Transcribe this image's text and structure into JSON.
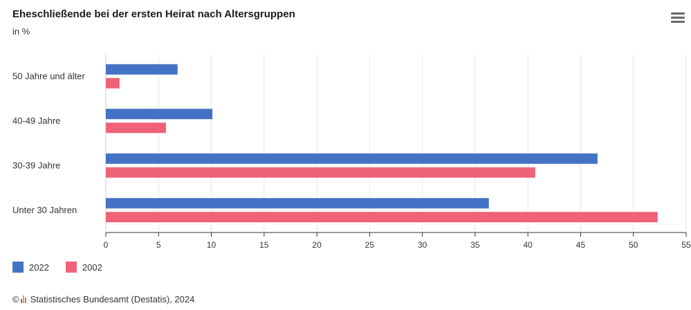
{
  "chart_data": {
    "type": "bar",
    "orientation": "horizontal",
    "title": "Eheschließende bei der ersten Heirat nach Altersgruppen",
    "subtitle": "in %",
    "categories": [
      "50 Jahre und älter",
      "40-49 Jahre",
      "30-39 Jahre",
      "Unter 30 Jahren"
    ],
    "series": [
      {
        "name": "2022",
        "color": "#4472c4",
        "values": [
          6.8,
          10.1,
          46.6,
          36.3
        ]
      },
      {
        "name": "2002",
        "color": "#f06277",
        "values": [
          1.3,
          5.7,
          40.7,
          52.3
        ]
      }
    ],
    "xlim": [
      0,
      55
    ],
    "xticks": [
      0,
      5,
      10,
      15,
      20,
      25,
      30,
      35,
      40,
      45,
      50,
      55
    ],
    "grid": true,
    "legend_position": "bottom-left"
  },
  "source": {
    "symbol": "©",
    "text": "Statistisches Bundesamt (Destatis), 2024"
  },
  "icons": {
    "menu": "hamburger-menu-icon",
    "source_logo": "destatis-logo-icon"
  }
}
